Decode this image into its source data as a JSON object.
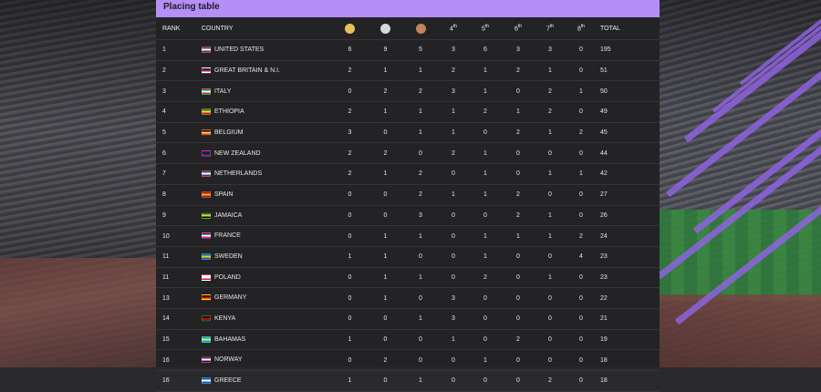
{
  "panel": {
    "title": "Placing table"
  },
  "colors": {
    "header_bar": "#b48ff5",
    "gold": "#e9c15a",
    "silver": "#d9d9d9",
    "bronze": "#c0855a",
    "accent_stripes": "#8e63e0"
  },
  "headers": {
    "rank": "RANK",
    "country": "COUNTRY",
    "medals": [
      {
        "name": "gold-medal-icon"
      },
      {
        "name": "silver-medal-icon"
      },
      {
        "name": "bronze-medal-icon"
      }
    ],
    "places": [
      {
        "n": "4",
        "suffix": "th"
      },
      {
        "n": "5",
        "suffix": "th"
      },
      {
        "n": "6",
        "suffix": "th"
      },
      {
        "n": "7",
        "suffix": "th"
      },
      {
        "n": "8",
        "suffix": "th"
      }
    ],
    "total": "TOTAL"
  },
  "rows": [
    {
      "rank": "1",
      "country": "UNITED STATES",
      "flag": [
        "#b22234",
        "#ffffff",
        "#3c3b6e"
      ],
      "cells": [
        "6",
        "9",
        "5",
        "3",
        "6",
        "3",
        "3",
        "0"
      ],
      "total": "195"
    },
    {
      "rank": "2",
      "country": "GREAT BRITAIN & N.I.",
      "flag": [
        "#012169",
        "#c8102e",
        "#ffffff"
      ],
      "cells": [
        "2",
        "1",
        "1",
        "2",
        "1",
        "2",
        "1",
        "0"
      ],
      "total": "51"
    },
    {
      "rank": "3",
      "country": "ITALY",
      "flag": [
        "#009246",
        "#ffffff",
        "#ce2b37"
      ],
      "cells": [
        "0",
        "2",
        "2",
        "3",
        "1",
        "0",
        "2",
        "1"
      ],
      "total": "50"
    },
    {
      "rank": "4",
      "country": "ETHIOPIA",
      "flag": [
        "#078930",
        "#fcdd09",
        "#da121a"
      ],
      "cells": [
        "2",
        "1",
        "1",
        "1",
        "2",
        "1",
        "2",
        "0"
      ],
      "total": "49"
    },
    {
      "rank": "5",
      "country": "BELGIUM",
      "flag": [
        "#000000",
        "#fdda24",
        "#ef3340"
      ],
      "cells": [
        "3",
        "0",
        "1",
        "1",
        "0",
        "2",
        "1",
        "2"
      ],
      "total": "45"
    },
    {
      "rank": "6",
      "country": "NEW ZEALAND",
      "flag": [
        "#012169",
        "#012169",
        "#c8102e"
      ],
      "cells": [
        "2",
        "2",
        "0",
        "2",
        "1",
        "0",
        "0",
        "0"
      ],
      "total": "44"
    },
    {
      "rank": "7",
      "country": "NETHERLANDS",
      "flag": [
        "#ae1c28",
        "#ffffff",
        "#21468b"
      ],
      "cells": [
        "2",
        "1",
        "2",
        "0",
        "1",
        "0",
        "1",
        "1"
      ],
      "total": "42"
    },
    {
      "rank": "8",
      "country": "SPAIN",
      "flag": [
        "#aa151b",
        "#f1bf00",
        "#aa151b"
      ],
      "cells": [
        "0",
        "0",
        "2",
        "1",
        "1",
        "2",
        "0",
        "0"
      ],
      "total": "27"
    },
    {
      "rank": "9",
      "country": "JAMAICA",
      "flag": [
        "#009b3a",
        "#fed100",
        "#000000"
      ],
      "cells": [
        "0",
        "0",
        "3",
        "0",
        "0",
        "2",
        "1",
        "0"
      ],
      "total": "26"
    },
    {
      "rank": "10",
      "country": "FRANCE",
      "flag": [
        "#002395",
        "#ffffff",
        "#ed2939"
      ],
      "cells": [
        "0",
        "1",
        "1",
        "0",
        "1",
        "1",
        "1",
        "2"
      ],
      "total": "24"
    },
    {
      "rank": "11",
      "country": "SWEDEN",
      "flag": [
        "#006aa7",
        "#fecc00",
        "#006aa7"
      ],
      "cells": [
        "1",
        "1",
        "0",
        "0",
        "1",
        "0",
        "0",
        "4"
      ],
      "total": "23"
    },
    {
      "rank": "11",
      "country": "POLAND",
      "flag": [
        "#ffffff",
        "#ffffff",
        "#dc143c"
      ],
      "cells": [
        "0",
        "1",
        "1",
        "0",
        "2",
        "0",
        "1",
        "0"
      ],
      "total": "23"
    },
    {
      "rank": "13",
      "country": "GERMANY",
      "flag": [
        "#000000",
        "#dd0000",
        "#ffce00"
      ],
      "cells": [
        "0",
        "1",
        "0",
        "3",
        "0",
        "0",
        "0",
        "0"
      ],
      "total": "22"
    },
    {
      "rank": "14",
      "country": "KENYA",
      "flag": [
        "#000000",
        "#bb0000",
        "#006600"
      ],
      "cells": [
        "0",
        "0",
        "1",
        "3",
        "0",
        "0",
        "0",
        "0"
      ],
      "total": "21"
    },
    {
      "rank": "15",
      "country": "BAHAMAS",
      "flag": [
        "#00abc9",
        "#fae042",
        "#00abc9"
      ],
      "cells": [
        "1",
        "0",
        "0",
        "1",
        "0",
        "2",
        "0",
        "0"
      ],
      "total": "19"
    },
    {
      "rank": "16",
      "country": "NORWAY",
      "flag": [
        "#ba0c2f",
        "#ffffff",
        "#00205b"
      ],
      "cells": [
        "0",
        "2",
        "0",
        "0",
        "1",
        "0",
        "0",
        "0"
      ],
      "total": "18"
    },
    {
      "rank": "16",
      "country": "GREECE",
      "flag": [
        "#0d5eaf",
        "#ffffff",
        "#0d5eaf"
      ],
      "cells": [
        "1",
        "0",
        "1",
        "0",
        "0",
        "0",
        "2",
        "0"
      ],
      "total": "18"
    }
  ]
}
